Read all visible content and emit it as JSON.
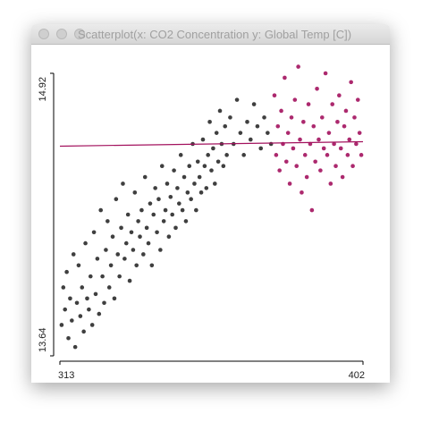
{
  "window": {
    "title": "Scatterplot(x: CO2 Concentration y: Global Temp [C])"
  },
  "chart_data": {
    "type": "scatter",
    "xlim": [
      313,
      402
    ],
    "xticks": [
      313,
      402
    ],
    "ylim": [
      13.64,
      14.92
    ],
    "yticks": [
      13.64,
      14.92
    ],
    "series": [
      {
        "color": "#2a2a2a",
        "x": [
          313.5,
          314,
          314.5,
          315,
          315.5,
          316,
          316.5,
          317,
          317.5,
          318,
          318.5,
          319,
          319.5,
          320,
          320.5,
          321,
          321.5,
          322,
          322.5,
          323,
          323.5,
          324,
          324.5,
          325,
          325.5,
          326,
          326.5,
          327,
          327.5,
          328,
          328.5,
          329,
          329.5,
          330,
          330.5,
          331,
          331.5,
          332,
          332.5,
          333,
          333.5,
          334,
          334.5,
          335,
          335.5,
          336,
          336.5,
          337,
          337.5,
          338,
          338.5,
          339,
          339.5,
          340,
          340.5,
          341,
          341.5,
          342,
          342.5,
          343,
          343.5,
          344,
          344.5,
          345,
          345.5,
          346,
          346.5,
          347,
          347.5,
          348,
          348.5,
          349,
          349.5,
          350,
          350.5,
          351,
          351.5,
          352,
          352.5,
          353,
          353.5,
          354,
          354.5,
          355,
          355.5,
          356,
          356.5,
          357,
          357.5,
          358,
          358.5,
          359,
          359.5,
          360,
          360.5,
          361,
          361.5,
          362,
          363,
          364,
          365,
          366,
          367,
          368,
          369,
          370,
          371,
          372,
          373,
          374,
          375
        ],
        "y": [
          13.78,
          13.95,
          13.85,
          14.02,
          13.72,
          13.9,
          13.8,
          14.1,
          13.68,
          13.88,
          14.05,
          13.82,
          13.95,
          13.75,
          14.15,
          13.9,
          13.85,
          14.0,
          13.78,
          14.2,
          13.92,
          14.08,
          13.83,
          14.3,
          14.0,
          13.88,
          14.12,
          14.25,
          13.95,
          14.05,
          14.18,
          13.9,
          14.35,
          14.1,
          14.0,
          14.22,
          14.42,
          14.08,
          14.15,
          14.28,
          13.98,
          14.2,
          14.12,
          14.38,
          14.05,
          14.25,
          14.18,
          14.3,
          14.1,
          14.45,
          14.22,
          14.15,
          14.33,
          14.05,
          14.28,
          14.4,
          14.2,
          14.35,
          14.12,
          14.5,
          14.25,
          14.3,
          14.42,
          14.18,
          14.36,
          14.28,
          14.48,
          14.22,
          14.4,
          14.33,
          14.55,
          14.3,
          14.45,
          14.25,
          14.38,
          14.5,
          14.35,
          14.6,
          14.42,
          14.3,
          14.52,
          14.45,
          14.38,
          14.62,
          14.5,
          14.4,
          14.55,
          14.7,
          14.48,
          14.58,
          14.42,
          14.65,
          14.52,
          14.75,
          14.6,
          14.5,
          14.68,
          14.55,
          14.72,
          14.6,
          14.8,
          14.65,
          14.55,
          14.7,
          14.62,
          14.78,
          14.68,
          14.58,
          14.72,
          14.65,
          14.6
        ]
      },
      {
        "color": "#a3125e",
        "x": [
          376,
          376.5,
          377,
          377.5,
          378,
          378.5,
          379,
          379.5,
          380,
          380.5,
          381,
          381.5,
          382,
          382.5,
          383,
          383.5,
          384,
          384.5,
          385,
          385.5,
          386,
          386.5,
          387,
          387.5,
          388,
          388.5,
          389,
          389.5,
          390,
          390.5,
          391,
          391.5,
          392,
          392.5,
          393,
          393.5,
          394,
          394.5,
          395,
          395.5,
          396,
          396.5,
          397,
          397.5,
          398,
          398.5,
          399,
          399.5,
          400,
          400.5,
          401,
          401.5
        ],
        "y": [
          14.82,
          14.55,
          14.68,
          14.48,
          14.75,
          14.6,
          14.9,
          14.52,
          14.65,
          14.42,
          14.72,
          14.58,
          14.8,
          14.5,
          14.95,
          14.62,
          14.38,
          14.7,
          14.55,
          14.45,
          14.78,
          14.6,
          14.3,
          14.68,
          14.52,
          14.85,
          14.62,
          14.48,
          14.72,
          14.58,
          14.92,
          14.55,
          14.65,
          14.42,
          14.78,
          14.6,
          14.5,
          14.7,
          14.82,
          14.58,
          14.45,
          14.68,
          14.75,
          14.55,
          14.62,
          14.88,
          14.5,
          14.72,
          14.6,
          14.8,
          14.65,
          14.55
        ]
      }
    ],
    "trend_line": {
      "color": "#a3125e",
      "x": [
        313,
        402
      ],
      "y": [
        14.59,
        14.61
      ]
    }
  }
}
